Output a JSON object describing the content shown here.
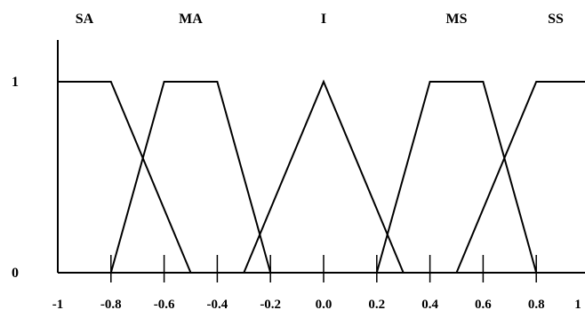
{
  "chart_data": {
    "type": "line",
    "title": "",
    "xlabel": "",
    "ylabel": "",
    "xlim": [
      -1,
      1
    ],
    "ylim": [
      0,
      1
    ],
    "grid": false,
    "legend": "none",
    "x_ticks": [
      -1,
      -0.8,
      -0.6,
      -0.4,
      -0.2,
      0,
      0.2,
      0.4,
      0.6,
      0.8,
      1
    ],
    "x_tick_labels": [
      "-1",
      "-0.8",
      "-0.6",
      "-0.4",
      "-0.2",
      "0.0",
      "0.2",
      "0.4",
      "0.6",
      "0.8",
      "1"
    ],
    "y_ticks": [
      0,
      1
    ],
    "y_tick_labels": [
      "0",
      "1"
    ],
    "series": [
      {
        "name": "SA",
        "x": [
          -1,
          -0.8,
          -0.5
        ],
        "y": [
          1,
          1,
          0
        ]
      },
      {
        "name": "MA",
        "x": [
          -0.8,
          -0.6,
          -0.4,
          -0.2
        ],
        "y": [
          0,
          1,
          1,
          0
        ]
      },
      {
        "name": "I",
        "x": [
          -0.3,
          0,
          0.3
        ],
        "y": [
          0,
          1,
          0
        ]
      },
      {
        "name": "MS",
        "x": [
          0.2,
          0.4,
          0.6,
          0.8
        ],
        "y": [
          0,
          1,
          1,
          0
        ]
      },
      {
        "name": "SS",
        "x": [
          0.5,
          0.8,
          1
        ],
        "y": [
          0,
          1,
          1
        ]
      }
    ],
    "colors": {
      "line": "#000000",
      "background": "#ffffff"
    }
  }
}
